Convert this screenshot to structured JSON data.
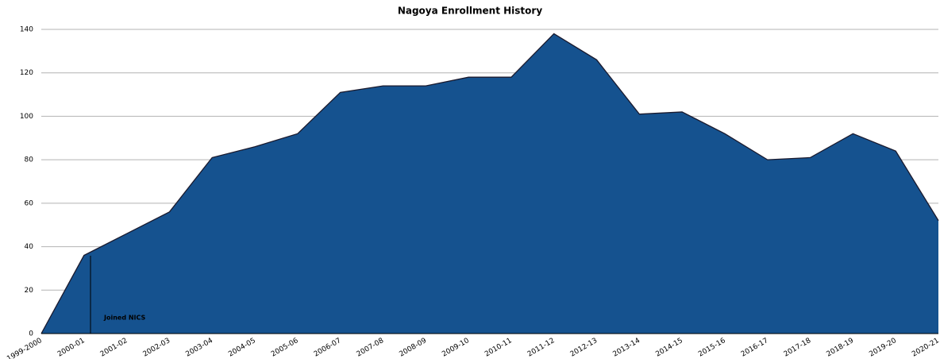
{
  "chart_data": {
    "type": "area",
    "title": "Nagoya Enrollment History",
    "categories": [
      "1999-2000",
      "2000-01",
      "2001-02",
      "2002-03",
      "2003-04",
      "2004-05",
      "2005-06",
      "2006-07",
      "2007-08",
      "2008-09",
      "2009-10",
      "2010-11",
      "2011-12",
      "2012-13",
      "2013-14",
      "2014-15",
      "2015-16",
      "2016-17",
      "2017-18",
      "2018-19",
      "2019-20",
      "2020-21"
    ],
    "values": [
      0,
      36,
      46,
      56,
      81,
      86,
      92,
      111,
      114,
      114,
      118,
      118,
      138,
      126,
      101,
      102,
      92,
      80,
      81,
      92,
      84,
      52
    ],
    "color": "#15528f",
    "ylim": [
      0,
      140
    ],
    "yticks": [
      0,
      20,
      40,
      60,
      80,
      100,
      120,
      140
    ],
    "grid": true,
    "annotations": [
      "Joined NICS"
    ]
  }
}
